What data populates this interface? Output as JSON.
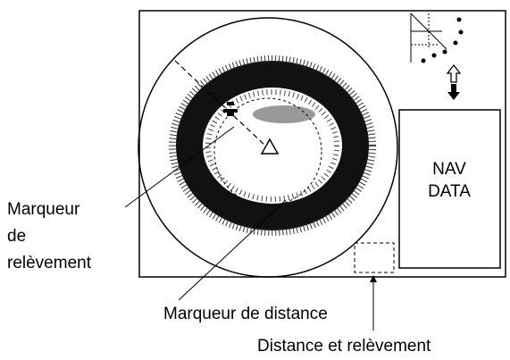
{
  "labels": {
    "bearing_marker": [
      "Marqueur",
      "de",
      "relèvement"
    ],
    "range_marker": "Marqueur de distance",
    "range_bearing": "Distance et relèvement"
  },
  "nav_box": [
    "NAV",
    "DATA"
  ]
}
